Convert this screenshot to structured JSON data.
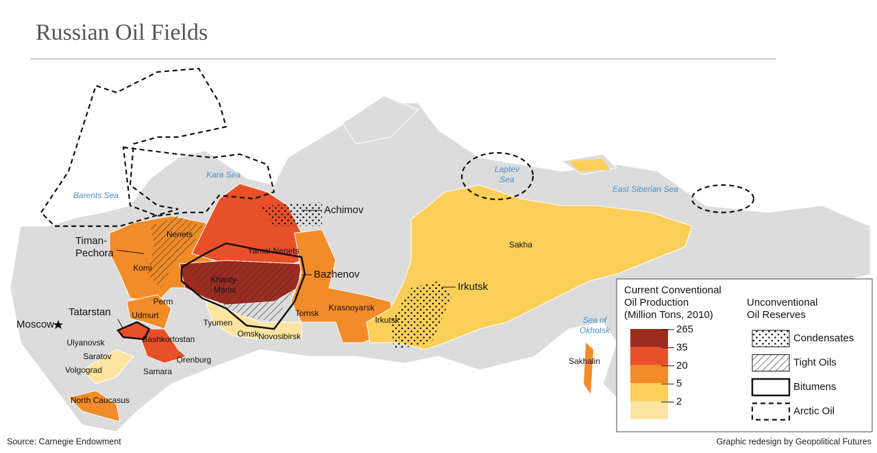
{
  "title": "Russian Oil Fields",
  "seas": [
    [
      "Barents Sea"
    ],
    [
      "Kara Sea"
    ],
    [
      "Laptev",
      "Sea"
    ],
    [
      "East Siberian Sea"
    ],
    [
      "Sea of",
      "Okhotsk"
    ]
  ],
  "regions": [
    [
      "Nenets"
    ],
    [
      "Komi"
    ],
    [
      "Perm"
    ],
    [
      "Udmurt"
    ],
    [
      "Bashkortostan"
    ],
    [
      "Orenburg"
    ],
    [
      "Samara"
    ],
    [
      "Saratov"
    ],
    [
      "Volgograd"
    ],
    [
      "Ulyanovsk"
    ],
    [
      "North Caucasus"
    ],
    [
      "Yamal-Nenets"
    ],
    [
      "Khanty-",
      "Mansi"
    ],
    [
      "Tyumen"
    ],
    [
      "Omsk"
    ],
    [
      "Novosibirsk"
    ],
    [
      "Tomsk"
    ],
    [
      "Krasnoyarsk"
    ],
    [
      "Irkutsk"
    ],
    [
      "Sakha"
    ],
    [
      "Sakhalin"
    ]
  ],
  "callouts": [
    [
      "Timan-",
      "Pechora"
    ],
    [
      "Tatarstan"
    ],
    [
      "Achimov"
    ],
    [
      "Bazhenov"
    ],
    [
      "Irkutsk"
    ],
    [
      "Moscow"
    ]
  ],
  "production_legend": {
    "title": [
      "Current Conventional",
      "Oil Production",
      "(Million Tons, 2010)"
    ],
    "ticks": [
      265,
      35,
      20,
      5,
      2
    ],
    "colors": [
      "#9e2b20",
      "#e8502a",
      "#f28c28",
      "#fbcf5a",
      "#fde4a0"
    ]
  },
  "unconventional_legend": {
    "title": [
      "Unconventional",
      "Oil Reserves"
    ],
    "items": [
      "Condensates",
      "Tight Oils",
      "Bitumens",
      "Arctic Oil"
    ]
  },
  "source": "Source: Carnegie Endowment",
  "credit": "Graphic redesign by Geopolitical Futures"
}
